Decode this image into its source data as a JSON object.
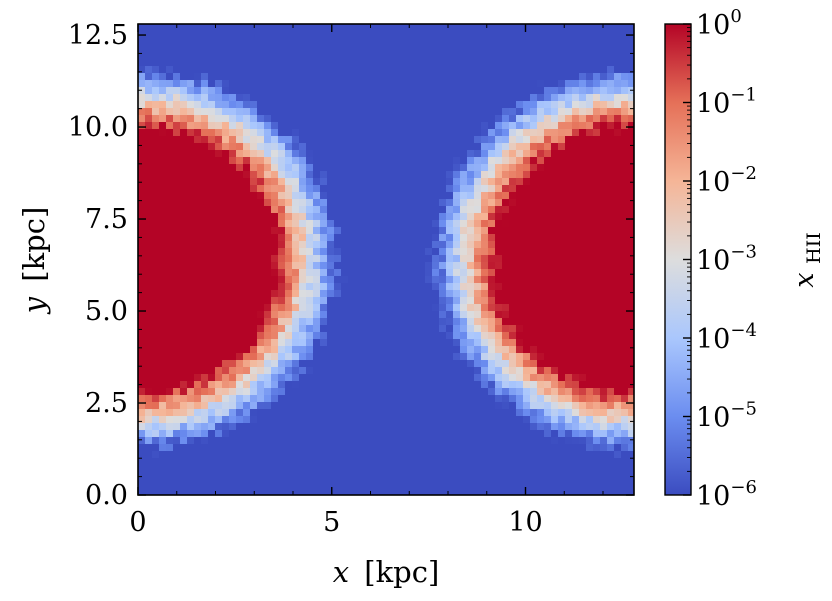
{
  "chart_data": {
    "type": "heatmap",
    "title": "",
    "xlabel": {
      "var": "x",
      "unit": "[kpc]"
    },
    "ylabel": {
      "var": "y",
      "unit": "[kpc]"
    },
    "xlim": [
      0,
      12.8
    ],
    "ylim": [
      0,
      12.8
    ],
    "x_ticks": [
      0,
      5,
      10
    ],
    "x_tick_labels": [
      "0",
      "5",
      "10"
    ],
    "y_ticks": [
      0.0,
      2.5,
      5.0,
      7.5,
      10.0,
      12.5
    ],
    "y_tick_labels": [
      "0.0",
      "2.5",
      "5.0",
      "7.5",
      "10.0",
      "12.5"
    ],
    "grid": false,
    "colormap": "coolwarm",
    "colormap_stops": [
      "#3b4cc0",
      "#6b8df0",
      "#aac7fd",
      "#dddddd",
      "#f5b597",
      "#e57058",
      "#b40426"
    ],
    "colorbar": {
      "label": {
        "var": "x",
        "sub": "HII"
      },
      "scale": "log",
      "range": [
        1e-06,
        1
      ],
      "tick_exponents": [
        0,
        -1,
        -2,
        -3,
        -4,
        -5,
        -6
      ],
      "tick_base": "10",
      "tick_values": [
        1,
        0.1,
        0.01,
        0.001,
        0.0001,
        1e-05,
        1e-06
      ]
    },
    "sources": [
      {
        "x": 0.0,
        "y": 6.4,
        "core_radius": 3.6,
        "front_radius": 5.2
      },
      {
        "x": 12.8,
        "y": 6.4,
        "core_radius": 3.6,
        "front_radius": 5.2
      }
    ],
    "background_value": 1e-06
  }
}
